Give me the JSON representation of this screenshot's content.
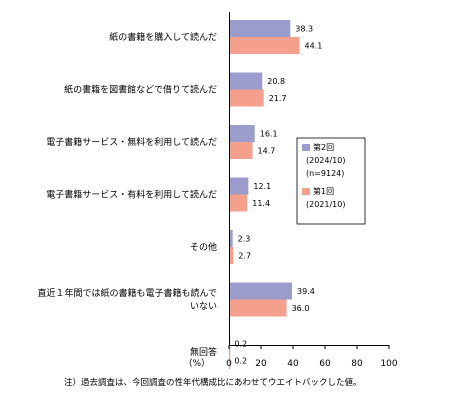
{
  "chart_data": {
    "type": "bar",
    "orientation": "horizontal",
    "categories": [
      [
        "紙の書籍を購入して読んだ"
      ],
      [
        "紙の書籍を図書館などで借りて読んだ"
      ],
      [
        "電子書籍サービス・無料を利用して読んだ"
      ],
      [
        "電子書籍サービス・有料を利用して読んだ"
      ],
      [
        "その他"
      ],
      [
        "直近１年間では紙の書籍も電子書籍も読んで",
        "いない"
      ],
      [
        "無回答"
      ]
    ],
    "series": [
      {
        "name": [
          "第2回",
          "(2024/10)",
          "(n=9124)"
        ],
        "color": "#9c9ccc",
        "values": [
          38.3,
          20.8,
          16.1,
          12.1,
          2.3,
          39.4,
          0.2
        ]
      },
      {
        "name": [
          "第1回",
          "(2021/10)"
        ],
        "color": "#f4a08c",
        "values": [
          44.1,
          21.7,
          14.7,
          11.4,
          2.7,
          36.0,
          0.2
        ]
      }
    ],
    "value_labels": [
      [
        "38.3",
        "20.8",
        "16.1",
        "12.1",
        "2.3",
        "39.4",
        "0.2"
      ],
      [
        "44.1",
        "21.7",
        "14.7",
        "11.4",
        "2.7",
        "36.0",
        "0.2"
      ]
    ],
    "xlim": [
      0,
      100
    ],
    "xticks": [
      "0",
      "20",
      "40",
      "60",
      "80",
      "100"
    ],
    "xlabel": "（%）",
    "legend_position": "right"
  },
  "note": "注）過去調査は、今回調査の性年代構成比にあわせてウエイトバックした値。"
}
